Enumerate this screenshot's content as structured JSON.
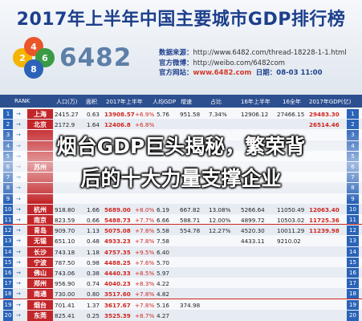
{
  "poster": {
    "title": "2017年上半年中国主要城市GDP排行榜",
    "brand": "6482",
    "logo_digits": [
      "2",
      "4",
      "6",
      "8"
    ],
    "meta": [
      {
        "label": "数据来源：",
        "value": "http://www.6482.com/thread-18228-1-1.html"
      },
      {
        "label": "官方微博：",
        "value": "http://weibo.com/6482com"
      },
      {
        "label": "官方网站：",
        "value": "www.6482.com",
        "extra": "日期：08-03 11:00"
      }
    ]
  },
  "headline": {
    "line1": "烟台GDP巨头揭秘，繁荣背",
    "line2": "后的十大力量支撑企业"
  },
  "table": {
    "columns": [
      "RANK",
      "人口(万)",
      "面积",
      "2017年上半年",
      "人均GDP",
      "增速",
      "占比",
      "16年上半年",
      "16全年",
      "2017年GDP(亿)"
    ],
    "rows": [
      {
        "rank": "1",
        "city": "上海",
        "pop": "2415.27",
        "area": "0.63",
        "gdp": "13908.57",
        "growth": "+6.9%",
        "per": "5.76",
        "v1": "951.58",
        "share": "7.34%",
        "g16": "12906.12",
        "y16": "27466.15",
        "est": "29483.30",
        "r": "1"
      },
      {
        "rank": "2",
        "city": "北京",
        "pop": "2172.9",
        "area": "1.64",
        "gdp": "12406.8",
        "growth": "+6.8%",
        "per": "",
        "v1": "",
        "share": "",
        "g16": "",
        "y16": "",
        "est": "26514.46",
        "r": "2"
      },
      {
        "rank": "3",
        "city": "",
        "pop": "",
        "area": "",
        "gdp": "",
        "growth": "",
        "per": "",
        "v1": "",
        "share": "",
        "g16": "",
        "y16": "",
        "est": "",
        "r": "3"
      },
      {
        "rank": "4",
        "city": "",
        "pop": "",
        "area": "",
        "gdp": "",
        "growth": "",
        "per": "",
        "v1": "",
        "share": "",
        "g16": "",
        "y16": "",
        "est": "",
        "r": "4"
      },
      {
        "rank": "5",
        "city": "",
        "pop": "",
        "area": "",
        "gdp": "",
        "growth": "",
        "per": "",
        "v1": "",
        "share": "",
        "g16": "",
        "y16": "",
        "est": "",
        "r": "5"
      },
      {
        "rank": "6",
        "city": "苏州",
        "pop": "",
        "area": "",
        "gdp": "",
        "growth": "",
        "per": "",
        "v1": "",
        "share": "",
        "g16": "",
        "y16": "",
        "est": "",
        "r": "6"
      },
      {
        "rank": "7",
        "city": "",
        "pop": "",
        "area": "",
        "gdp": "",
        "growth": "",
        "per": "",
        "v1": "",
        "share": "",
        "g16": "",
        "y16": "",
        "est": "",
        "r": "7"
      },
      {
        "rank": "8",
        "city": "",
        "pop": "",
        "area": "",
        "gdp": "",
        "growth": "",
        "per": "",
        "v1": "",
        "share": "",
        "g16": "",
        "y16": "",
        "est": "",
        "r": "8"
      },
      {
        "rank": "9",
        "city": "",
        "pop": "",
        "area": "",
        "gdp": "",
        "growth": "",
        "per": "",
        "v1": "",
        "share": "",
        "g16": "",
        "y16": "",
        "est": "",
        "r": "9"
      },
      {
        "rank": "10",
        "city": "杭州",
        "pop": "918.80",
        "area": "1.66",
        "gdp": "5689.00",
        "growth": "+8.0%",
        "per": "6.19",
        "v1": "667.82",
        "share": "13.08%",
        "g16": "5266.64",
        "y16": "11050.49",
        "est": "12063.40",
        "r": "10"
      },
      {
        "rank": "11",
        "city": "南京",
        "pop": "823.59",
        "area": "0.66",
        "gdp": "5488.73",
        "growth": "+7.7%",
        "per": "6.66",
        "v1": "588.71",
        "share": "12.00%",
        "g16": "4899.72",
        "y16": "10503.02",
        "est": "11725.36",
        "r": "11"
      },
      {
        "rank": "12",
        "city": "青岛",
        "pop": "909.70",
        "area": "1.13",
        "gdp": "5075.08",
        "growth": "+7.8%",
        "per": "5.58",
        "v1": "554.78",
        "share": "12.27%",
        "g16": "4520.30",
        "y16": "10011.29",
        "est": "11239.98",
        "r": "12"
      },
      {
        "rank": "13",
        "city": "无锡",
        "pop": "651.10",
        "area": "0.48",
        "gdp": "4933.23",
        "growth": "+7.8%",
        "per": "7.58",
        "v1": "",
        "share": "",
        "g16": "4433.11",
        "y16": "9210.02",
        "est": "",
        "r": "13"
      },
      {
        "rank": "14",
        "city": "长沙",
        "pop": "743.18",
        "area": "1.18",
        "gdp": "4757.35",
        "growth": "+9.5%",
        "per": "6.40",
        "v1": "",
        "share": "",
        "g16": "",
        "y16": "",
        "est": "",
        "r": "14"
      },
      {
        "rank": "15",
        "city": "宁波",
        "pop": "787.50",
        "area": "0.98",
        "gdp": "4488.25",
        "growth": "+7.6%",
        "per": "5.70",
        "v1": "",
        "share": "",
        "g16": "",
        "y16": "",
        "est": "",
        "r": "15"
      },
      {
        "rank": "16",
        "city": "佛山",
        "pop": "743.06",
        "area": "0.38",
        "gdp": "4440.33",
        "growth": "+8.5%",
        "per": "5.97",
        "v1": "",
        "share": "",
        "g16": "",
        "y16": "",
        "est": "",
        "r": "16"
      },
      {
        "rank": "17",
        "city": "郑州",
        "pop": "956.90",
        "area": "0.74",
        "gdp": "4040.23",
        "growth": "+8.3%",
        "per": "4.22",
        "v1": "",
        "share": "",
        "g16": "",
        "y16": "",
        "est": "",
        "r": "17"
      },
      {
        "rank": "18",
        "city": "南通",
        "pop": "730.00",
        "area": "0.80",
        "gdp": "3517.60",
        "growth": "+7.8%",
        "per": "4.82",
        "v1": "",
        "share": "",
        "g16": "",
        "y16": "",
        "est": "",
        "r": "18"
      },
      {
        "rank": "19",
        "city": "烟台",
        "pop": "701.41",
        "area": "1.37",
        "gdp": "3617.67",
        "growth": "+7.8%",
        "per": "5.16",
        "v1": "374.98",
        "share": "",
        "g16": "",
        "y16": "",
        "est": "",
        "r": "19"
      },
      {
        "rank": "20",
        "city": "东莞",
        "pop": "825.41",
        "area": "0.25",
        "gdp": "3525.39",
        "growth": "+8.7%",
        "per": "4.27",
        "v1": "",
        "share": "",
        "g16": "",
        "y16": "",
        "est": "",
        "r": "20"
      }
    ]
  }
}
